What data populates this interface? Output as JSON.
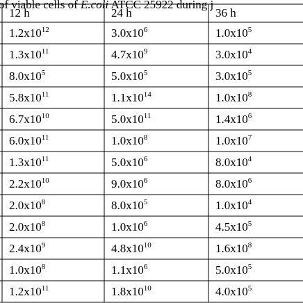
{
  "caption": {
    "before": "of viable cells of ",
    "italic": "E.coli",
    "after": " ATCC 25922 during j"
  },
  "table": {
    "headers": [
      "12 h",
      "24 h",
      "36 h"
    ],
    "rows": [
      [
        {
          "base": "1.2x10",
          "exp": "12"
        },
        {
          "base": "3.0x10",
          "exp": "6"
        },
        {
          "base": "1.0x10",
          "exp": "5"
        }
      ],
      [
        {
          "base": "1.3x10",
          "exp": "11"
        },
        {
          "base": "4.7x10",
          "exp": "9"
        },
        {
          "base": "3.0x10",
          "exp": "4"
        }
      ],
      [
        {
          "base": "8.0x10",
          "exp": "5"
        },
        {
          "base": "5.0x10",
          "exp": "5"
        },
        {
          "base": "3.0x10",
          "exp": "5"
        }
      ],
      [
        {
          "base": "5.8x10",
          "exp": "11"
        },
        {
          "base": "1.1x10",
          "exp": "14"
        },
        {
          "base": "1.0x10",
          "exp": "8"
        }
      ],
      [
        {
          "base": "6.7x10",
          "exp": "10"
        },
        {
          "base": "5.0x10",
          "exp": "11"
        },
        {
          "base": "1.4x10",
          "exp": "6"
        }
      ],
      [
        {
          "base": "6.0x10",
          "exp": "11"
        },
        {
          "base": "1.0x10",
          "exp": "8"
        },
        {
          "base": "1.0x10",
          "exp": "7"
        }
      ],
      [
        {
          "base": "1.3x10",
          "exp": "11"
        },
        {
          "base": "5.0x10",
          "exp": "6"
        },
        {
          "base": "8.0x10",
          "exp": "4"
        }
      ],
      [
        {
          "base": "2.2x10",
          "exp": "10"
        },
        {
          "base": "9.0x10",
          "exp": "6"
        },
        {
          "base": "8.0x10",
          "exp": "6"
        }
      ],
      [
        {
          "base": "2.0x10",
          "exp": "8"
        },
        {
          "base": "8.0x10",
          "exp": "5"
        },
        {
          "base": "1.0x10",
          "exp": "4"
        }
      ],
      [
        {
          "base": "2.0x10",
          "exp": "8"
        },
        {
          "base": "1.0x10",
          "exp": "6"
        },
        {
          "base": "4.5x10",
          "exp": "5"
        }
      ],
      [
        {
          "base": "2.4x10",
          "exp": "9"
        },
        {
          "base": "4.8x10",
          "exp": "10"
        },
        {
          "base": "1.6x10",
          "exp": "8"
        }
      ],
      [
        {
          "base": "1.0x10",
          "exp": "8"
        },
        {
          "base": "1.1x10",
          "exp": "6"
        },
        {
          "base": "5.0x10",
          "exp": "5"
        }
      ],
      [
        {
          "base": "1.2x10",
          "exp": "11"
        },
        {
          "base": "1.8x10",
          "exp": "10"
        },
        {
          "base": "4.0x10",
          "exp": "5"
        }
      ]
    ]
  }
}
